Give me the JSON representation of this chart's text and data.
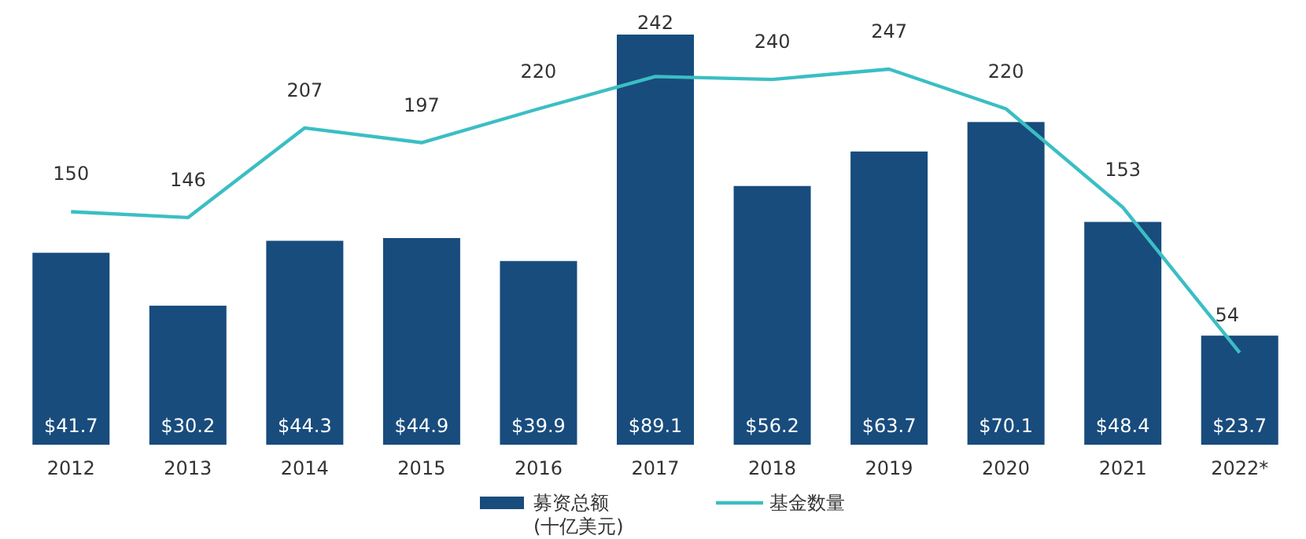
{
  "chart_data": {
    "type": "bar",
    "categories": [
      "2012",
      "2013",
      "2014",
      "2015",
      "2016",
      "2017",
      "2018",
      "2019",
      "2020",
      "2021",
      "2022*"
    ],
    "legend": "bottom",
    "series": [
      {
        "name": "募资总额 (十亿美元)",
        "color": "#184c7d",
        "values": [
          41.7,
          30.2,
          44.3,
          44.9,
          39.9,
          89.1,
          56.2,
          63.7,
          70.1,
          48.4,
          23.7
        ],
        "value_labels": [
          "$41.7",
          "$30.2",
          "$44.3",
          "$44.9",
          "$39.9",
          "$89.1",
          "$56.2",
          "$63.7",
          "$70.1",
          "$48.4",
          "$23.7"
        ]
      },
      {
        "name": "基金数量",
        "type": "line",
        "axis": "y2",
        "color": "#3bbec4",
        "values": [
          150,
          146,
          207,
          197,
          220,
          242,
          240,
          247,
          220,
          153,
          54
        ],
        "value_labels": [
          "150",
          "146",
          "207",
          "197",
          "220",
          "242",
          "240",
          "247",
          "220",
          "153",
          "54"
        ]
      }
    ]
  }
}
